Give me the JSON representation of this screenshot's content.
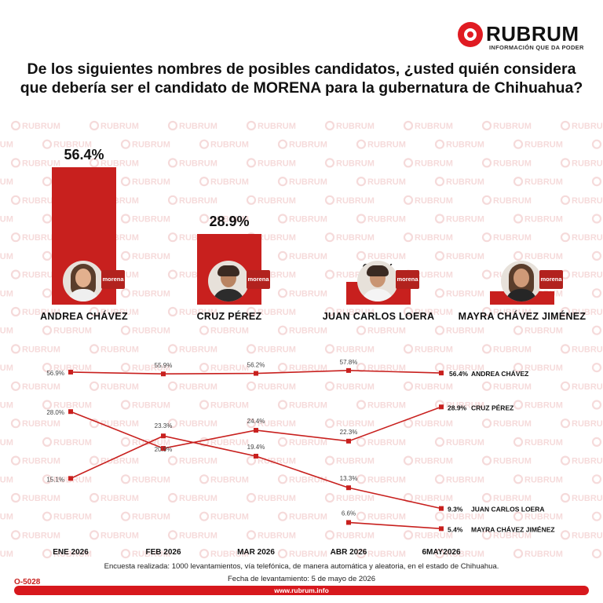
{
  "brand": {
    "name": "RUBRUM",
    "tagline": "INFORMACIÓN QUE DA PODER",
    "watermark": "RUBRUM",
    "accent": "#c8201e"
  },
  "title": "De los siguientes nombres de posibles candidatos, ¿usted quién considera que debería ser el candidato de MORENA para la gubernatura de Chihuahua?",
  "party_logo_text": "morena",
  "icons": [
    "rubrum-logo-icon",
    "candidate-photo",
    "morena-logo-icon"
  ],
  "chart_data": [
    {
      "type": "bar",
      "title": "",
      "categories": [
        "ANDREA CHÁVEZ",
        "CRUZ PÉREZ",
        "JUAN CARLOS LOERA",
        "MAYRA CHÁVEZ JIMÉNEZ"
      ],
      "values": [
        56.4,
        28.9,
        9.3,
        5.4
      ],
      "value_labels": [
        "56.4%",
        "28.9%",
        "9.3%",
        "5.4%"
      ],
      "ylim": [
        0,
        60
      ]
    },
    {
      "type": "line",
      "title": "",
      "x": [
        "ENE 2026",
        "FEB 2026",
        "MAR 2026",
        "ABR 2026",
        "6MAY2026"
      ],
      "series": [
        {
          "name": "ANDREA CHÁVEZ",
          "values": [
            56.9,
            55.9,
            56.2,
            57.8,
            56.4
          ],
          "labels": [
            "56.9%",
            "55.9%",
            "56.2%",
            "57.8%",
            "56.4%"
          ]
        },
        {
          "name": "CRUZ PÉREZ",
          "values": [
            28.0,
            20.9,
            24.4,
            22.3,
            28.9
          ],
          "labels": [
            "28.0%",
            "20.9%",
            "24.4%",
            "22.3%",
            "28.9%"
          ]
        },
        {
          "name": "JUAN CARLOS LOERA",
          "values": [
            15.1,
            23.3,
            19.4,
            13.3,
            9.3
          ],
          "labels": [
            "15.1%",
            "23.3%",
            "19.4%",
            "13.3%",
            "9.3%"
          ]
        },
        {
          "name": "MAYRA CHÁVEZ JIMÉNEZ",
          "values": [
            null,
            null,
            null,
            6.6,
            5.4
          ],
          "labels": [
            "",
            "",
            "",
            "6.6%",
            "5.4%"
          ]
        }
      ],
      "color": "#c8201e"
    }
  ],
  "footnote": {
    "method": "Encuesta realizada: 1000 levantamientos, vía telefónica, de manera automática y aleatoria, en el estado de Chihuahua.",
    "date": "Fecha de levantamiento: 5 de mayo de 2026",
    "code": "O-5028",
    "url": "www.rubrum.info"
  }
}
